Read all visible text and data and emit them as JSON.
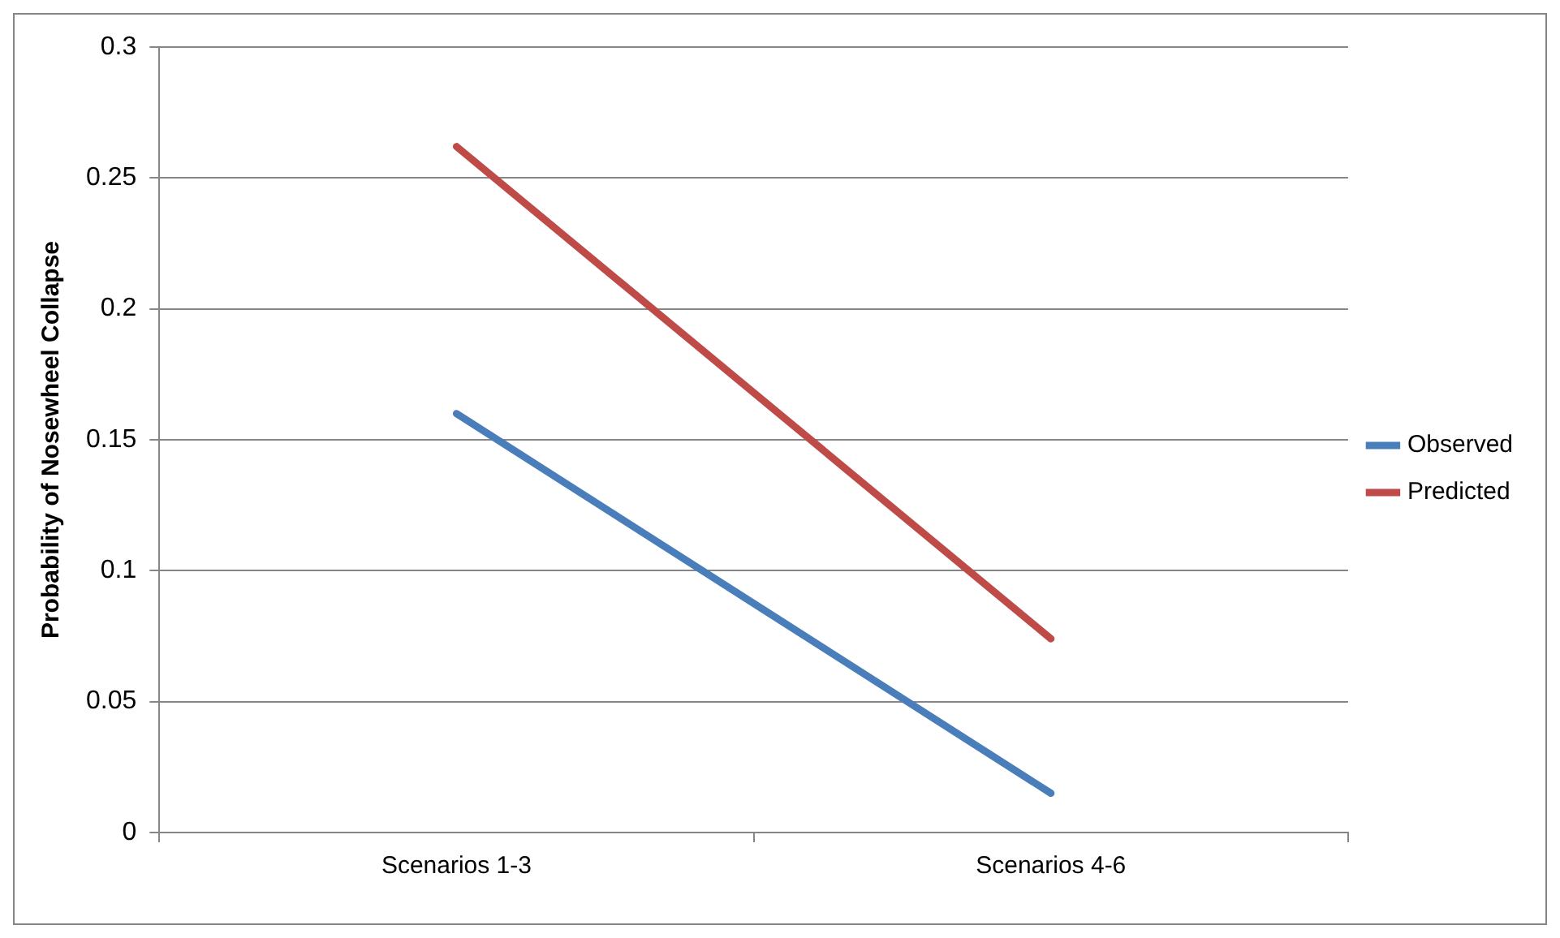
{
  "chart_data": {
    "type": "line",
    "ylabel": "Probability of Nosewheel Collapse",
    "categories": [
      "Scenarios 1-3",
      "Scenarios 4-6"
    ],
    "series": [
      {
        "name": "Observed",
        "color": "#4a7ebb",
        "values": [
          0.16,
          0.015
        ]
      },
      {
        "name": "Predicted",
        "color": "#be4b48",
        "values": [
          0.262,
          0.074
        ]
      }
    ],
    "ylim": [
      0,
      0.3
    ],
    "yticks": [
      0,
      0.05,
      0.1,
      0.15,
      0.2,
      0.25,
      0.3
    ],
    "grid": "y",
    "legend": "right",
    "marker": "none"
  }
}
